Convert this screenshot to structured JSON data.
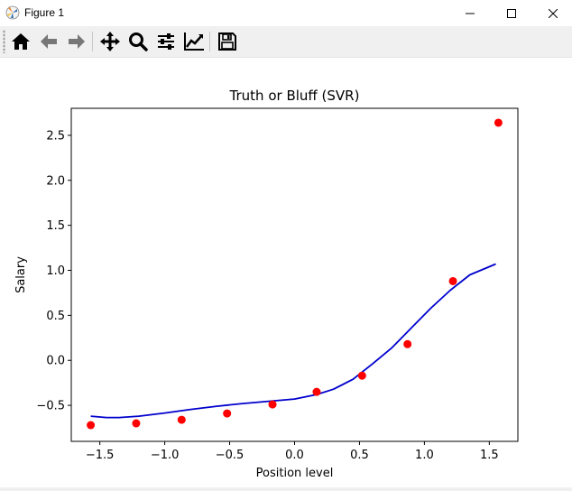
{
  "window": {
    "title": "Figure 1"
  },
  "toolbar": {
    "buttons": [
      {
        "name": "home-button",
        "icon": "home-icon"
      },
      {
        "name": "back-button",
        "icon": "arrow-left-icon"
      },
      {
        "name": "forward-button",
        "icon": "arrow-right-icon"
      },
      {
        "name": "pan-button",
        "icon": "move-icon"
      },
      {
        "name": "zoom-button",
        "icon": "magnifier-icon"
      },
      {
        "name": "configure-subplots-button",
        "icon": "sliders-icon"
      },
      {
        "name": "edit-axis-button",
        "icon": "line-chart-icon"
      },
      {
        "name": "save-button",
        "icon": "floppy-disk-icon"
      }
    ]
  },
  "chart_data": {
    "type": "scatter",
    "title": "Truth or Bluff (SVR)",
    "xlabel": "Position level",
    "ylabel": "Salary",
    "xlim": [
      -1.72,
      1.72
    ],
    "ylim": [
      -0.9,
      2.8
    ],
    "xticks": [
      -1.5,
      -1.0,
      -0.5,
      0.0,
      0.5,
      1.0,
      1.5
    ],
    "xtick_labels": [
      "−1.5",
      "−1.0",
      "−0.5",
      "0.0",
      "0.5",
      "1.0",
      "1.5"
    ],
    "yticks": [
      -0.5,
      0.0,
      0.5,
      1.0,
      1.5,
      2.0,
      2.5
    ],
    "ytick_labels": [
      "−0.5",
      "0.0",
      "0.5",
      "1.0",
      "1.5",
      "2.0",
      "2.5"
    ],
    "grid": false,
    "colors": {
      "scatter": "#ff0000",
      "line": "#0000cd"
    },
    "series": [
      {
        "type": "scatter",
        "x": [
          -1.57,
          -1.22,
          -0.87,
          -0.52,
          -0.17,
          0.17,
          0.52,
          0.87,
          1.22,
          1.57
        ],
        "y": [
          -0.72,
          -0.7,
          -0.66,
          -0.59,
          -0.49,
          -0.35,
          -0.17,
          0.18,
          0.88,
          2.64
        ]
      },
      {
        "type": "line",
        "x": [
          -1.57,
          -1.45,
          -1.35,
          -1.2,
          -1.0,
          -0.8,
          -0.6,
          -0.4,
          -0.2,
          0.0,
          0.17,
          0.3,
          0.45,
          0.6,
          0.75,
          0.9,
          1.05,
          1.2,
          1.35,
          1.55
        ],
        "y": [
          -0.62,
          -0.635,
          -0.635,
          -0.62,
          -0.585,
          -0.545,
          -0.51,
          -0.48,
          -0.455,
          -0.43,
          -0.38,
          -0.32,
          -0.21,
          -0.04,
          0.14,
          0.36,
          0.58,
          0.78,
          0.95,
          1.07
        ]
      }
    ]
  }
}
